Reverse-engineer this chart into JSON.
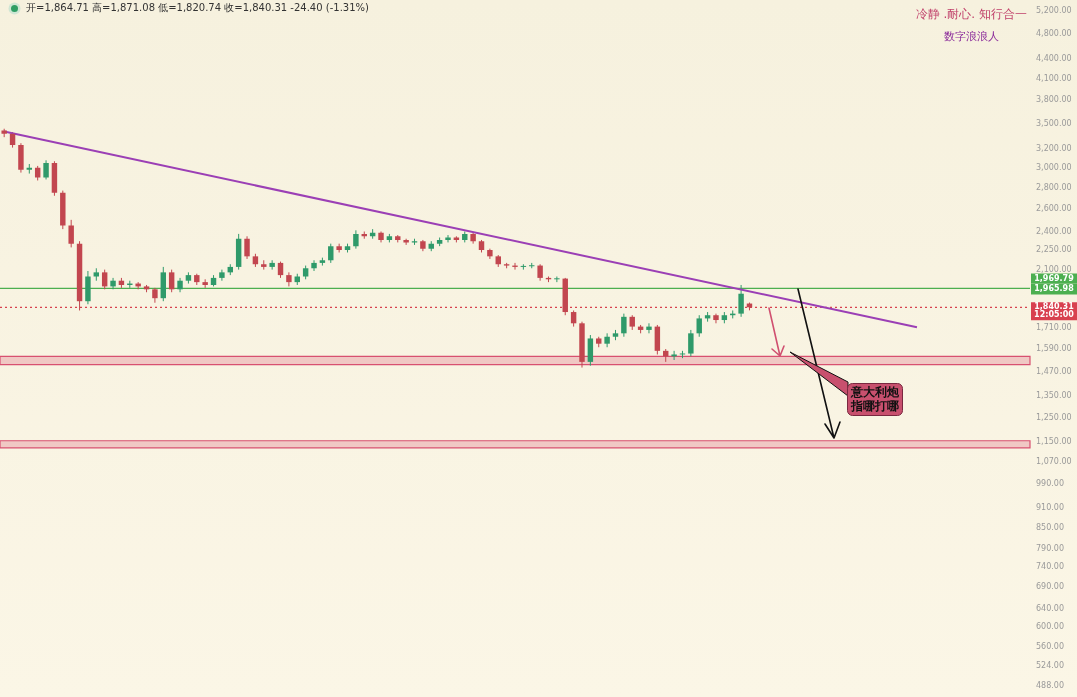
{
  "chart_data": {
    "type": "candlestick",
    "title": "冷静 .耐心. 知行合一",
    "subtitle": "数字浪浪人",
    "categories": [
      null,
      null,
      null,
      null,
      null,
      null,
      null,
      null,
      null,
      null,
      null,
      null,
      null,
      null,
      null,
      null,
      null,
      null,
      null,
      null,
      null,
      null,
      null,
      null,
      null,
      null,
      null,
      null,
      null,
      null,
      null,
      null,
      null,
      null,
      null,
      null,
      null,
      null,
      null,
      null,
      null,
      null,
      null,
      null,
      null,
      null,
      null,
      null,
      null,
      null,
      null,
      null,
      null,
      null,
      null,
      null,
      null,
      null,
      null,
      null,
      null,
      null,
      null,
      null,
      null,
      null,
      null,
      null,
      null,
      null,
      null,
      null,
      null,
      null,
      null,
      null,
      null,
      null,
      null,
      null,
      null,
      null,
      null,
      null,
      null,
      null,
      null,
      null,
      null,
      null,
      null,
      null,
      null,
      null,
      null,
      null,
      null,
      null,
      null,
      null,
      null,
      null,
      null,
      null,
      null,
      null,
      null,
      null,
      null,
      null,
      null,
      null,
      null,
      null,
      null,
      null,
      null,
      null,
      null,
      null,
      null,
      null,
      null
    ],
    "ohlc": [
      [
        3420,
        3440,
        3340,
        3380
      ],
      [
        3380,
        3400,
        3220,
        3250
      ],
      [
        3250,
        3270,
        2950,
        2980
      ],
      [
        2980,
        3040,
        2940,
        3000
      ],
      [
        3000,
        3020,
        2870,
        2900
      ],
      [
        2900,
        3080,
        2880,
        3050
      ],
      [
        3050,
        3070,
        2720,
        2750
      ],
      [
        2750,
        2770,
        2420,
        2450
      ],
      [
        2450,
        2500,
        2270,
        2300
      ],
      [
        2300,
        2320,
        1820,
        1880
      ],
      [
        1880,
        2090,
        1860,
        2050
      ],
      [
        2050,
        2110,
        2020,
        2080
      ],
      [
        2080,
        2100,
        1960,
        1980
      ],
      [
        1980,
        2040,
        1960,
        2020
      ],
      [
        2020,
        2040,
        1970,
        1990
      ],
      [
        1990,
        2020,
        1970,
        2000
      ],
      [
        2000,
        2010,
        1960,
        1980
      ],
      [
        1980,
        1990,
        1940,
        1960
      ],
      [
        1960,
        1970,
        1870,
        1900
      ],
      [
        1900,
        2120,
        1880,
        2080
      ],
      [
        2080,
        2100,
        1940,
        1960
      ],
      [
        1960,
        2040,
        1940,
        2020
      ],
      [
        2020,
        2080,
        2000,
        2060
      ],
      [
        2060,
        2070,
        1990,
        2010
      ],
      [
        2010,
        2030,
        1970,
        1990
      ],
      [
        1990,
        2060,
        1980,
        2040
      ],
      [
        2040,
        2100,
        2020,
        2080
      ],
      [
        2080,
        2140,
        2060,
        2120
      ],
      [
        2120,
        2380,
        2100,
        2340
      ],
      [
        2340,
        2360,
        2180,
        2200
      ],
      [
        2200,
        2220,
        2120,
        2140
      ],
      [
        2140,
        2170,
        2100,
        2120
      ],
      [
        2120,
        2170,
        2100,
        2150
      ],
      [
        2150,
        2160,
        2040,
        2060
      ],
      [
        2060,
        2080,
        1980,
        2010
      ],
      [
        2010,
        2070,
        1990,
        2050
      ],
      [
        2050,
        2130,
        2030,
        2110
      ],
      [
        2110,
        2170,
        2090,
        2150
      ],
      [
        2150,
        2190,
        2130,
        2170
      ],
      [
        2170,
        2300,
        2150,
        2280
      ],
      [
        2280,
        2300,
        2230,
        2250
      ],
      [
        2250,
        2300,
        2230,
        2280
      ],
      [
        2280,
        2410,
        2260,
        2380
      ],
      [
        2380,
        2400,
        2340,
        2360
      ],
      [
        2360,
        2420,
        2340,
        2390
      ],
      [
        2390,
        2400,
        2310,
        2330
      ],
      [
        2330,
        2380,
        2310,
        2360
      ],
      [
        2360,
        2370,
        2310,
        2330
      ],
      [
        2330,
        2340,
        2290,
        2310
      ],
      [
        2310,
        2340,
        2290,
        2320
      ],
      [
        2320,
        2330,
        2240,
        2260
      ],
      [
        2260,
        2320,
        2240,
        2300
      ],
      [
        2300,
        2350,
        2280,
        2330
      ],
      [
        2330,
        2370,
        2310,
        2350
      ],
      [
        2350,
        2360,
        2310,
        2330
      ],
      [
        2330,
        2400,
        2310,
        2380
      ],
      [
        2380,
        2390,
        2300,
        2320
      ],
      [
        2320,
        2330,
        2230,
        2250
      ],
      [
        2250,
        2260,
        2180,
        2200
      ],
      [
        2200,
        2210,
        2120,
        2140
      ],
      [
        2140,
        2150,
        2110,
        2130
      ],
      [
        2130,
        2150,
        2100,
        2120
      ],
      [
        2120,
        2140,
        2100,
        2125
      ],
      [
        2125,
        2150,
        2110,
        2130
      ],
      [
        2130,
        2140,
        2020,
        2040
      ],
      [
        2040,
        2050,
        2010,
        2030
      ],
      [
        2030,
        2050,
        2010,
        2035
      ],
      [
        2035,
        2040,
        1790,
        1810
      ],
      [
        1810,
        1820,
        1720,
        1740
      ],
      [
        1740,
        1750,
        1490,
        1520
      ],
      [
        1520,
        1670,
        1500,
        1650
      ],
      [
        1650,
        1660,
        1600,
        1620
      ],
      [
        1620,
        1680,
        1600,
        1660
      ],
      [
        1660,
        1700,
        1640,
        1680
      ],
      [
        1680,
        1800,
        1660,
        1780
      ],
      [
        1780,
        1790,
        1700,
        1720
      ],
      [
        1720,
        1730,
        1680,
        1700
      ],
      [
        1700,
        1740,
        1680,
        1720
      ],
      [
        1720,
        1730,
        1560,
        1580
      ],
      [
        1580,
        1590,
        1520,
        1550
      ],
      [
        1550,
        1580,
        1530,
        1560
      ],
      [
        1560,
        1580,
        1540,
        1565
      ],
      [
        1565,
        1700,
        1550,
        1680
      ],
      [
        1680,
        1790,
        1660,
        1770
      ],
      [
        1770,
        1810,
        1750,
        1790
      ],
      [
        1790,
        1800,
        1740,
        1760
      ],
      [
        1760,
        1810,
        1740,
        1790
      ],
      [
        1790,
        1820,
        1770,
        1800
      ],
      [
        1800,
        1990,
        1780,
        1930
      ],
      [
        1864.71,
        1871.08,
        1820.74,
        1840.31
      ],
      null,
      null,
      null,
      null,
      null,
      null,
      null,
      null,
      null,
      null,
      null,
      null,
      null,
      null,
      null,
      null,
      null,
      null,
      null,
      null,
      null,
      null,
      null,
      null,
      null,
      null,
      null,
      null,
      null,
      null,
      null,
      null,
      null
    ],
    "series": [
      {
        "type": "line",
        "color": "#9b3fb5",
        "values": [
          3406,
          null,
          null,
          null,
          null,
          null,
          null,
          null,
          null,
          null,
          null,
          null,
          null,
          null,
          null,
          null,
          null,
          null,
          null,
          null,
          null,
          null,
          null,
          null,
          null,
          null,
          null,
          null,
          null,
          null,
          null,
          null,
          null,
          null,
          null,
          null,
          null,
          null,
          null,
          null,
          null,
          null,
          null,
          null,
          null,
          null,
          null,
          null,
          null,
          null,
          null,
          null,
          null,
          null,
          null,
          null,
          null,
          null,
          null,
          null,
          null,
          null,
          null,
          null,
          null,
          null,
          null,
          null,
          null,
          null,
          null,
          null,
          null,
          null,
          null,
          null,
          null,
          null,
          null,
          null,
          null,
          null,
          null,
          null,
          null,
          null,
          null,
          null,
          null,
          null,
          null,
          null,
          null,
          null,
          null,
          null,
          null,
          null,
          null,
          null,
          null,
          null,
          null,
          null,
          null,
          null,
          null,
          null,
          null,
          1716,
          null,
          null,
          null,
          null,
          null,
          null,
          null,
          null,
          null,
          null,
          null,
          null,
          null
        ]
      }
    ],
    "log": true,
    "ylim": [
      488,
      5200
    ],
    "yticks": [
      {
        "value": 5200,
        "label": "5,200.00"
      },
      {
        "value": 4800,
        "label": "4,800.00"
      },
      {
        "value": 4400,
        "label": "4,400.00"
      },
      {
        "value": 4100,
        "label": "4,100.00"
      },
      {
        "value": 3800,
        "label": "3,800.00"
      },
      {
        "value": 3500,
        "label": "3,500.00"
      },
      {
        "value": 3200,
        "label": "3,200.00"
      },
      {
        "value": 3000,
        "label": "3,000.00"
      },
      {
        "value": 2800,
        "label": "2,800.00"
      },
      {
        "value": 2600,
        "label": "2,600.00"
      },
      {
        "value": 2400,
        "label": "2,400.00"
      },
      {
        "value": 2250,
        "label": "2,250.00"
      },
      {
        "value": 2100,
        "label": "2,100.00"
      },
      {
        "value": 1710,
        "label": "1,710.00"
      },
      {
        "value": 1590,
        "label": "1,590.00"
      },
      {
        "value": 1470,
        "label": "1,470.00"
      },
      {
        "value": 1350,
        "label": "1,350.00"
      },
      {
        "value": 1250,
        "label": "1,250.00"
      },
      {
        "value": 1150,
        "label": "1,150.00"
      },
      {
        "value": 1070,
        "label": "1,070.00"
      },
      {
        "value": 990,
        "label": "990.00"
      },
      {
        "value": 910,
        "label": "910.00"
      },
      {
        "value": 850,
        "label": "850.00"
      },
      {
        "value": 790,
        "label": "790.00"
      },
      {
        "value": 740,
        "label": "740.00"
      },
      {
        "value": 690,
        "label": "690.00"
      },
      {
        "value": 640,
        "label": "640.00"
      },
      {
        "value": 600,
        "label": "600.00"
      },
      {
        "value": 560,
        "label": "560.00"
      },
      {
        "value": 524,
        "label": "524.00"
      },
      {
        "value": 488,
        "label": "488.00"
      }
    ],
    "tick_labels": "y",
    "ref_lines": [
      {
        "axis": "y",
        "value": 1965.98,
        "label": "1,965.98",
        "color": "#4caf50",
        "line_style": "solid"
      },
      {
        "axis": "y",
        "value": 1840.31,
        "label": "1,840.31",
        "color": "#d8404f",
        "line_style": "dotted"
      }
    ],
    "bands": [
      {
        "axis": "y",
        "from": 1505,
        "to": 1550,
        "color": "#d85070"
      },
      {
        "axis": "y",
        "from": 1125,
        "to": 1153,
        "color": "#d85070"
      }
    ],
    "annotations": [
      "开=1,864.71 高=1,871.08 低=1,820.74 收=1,840.31 -24.40 (-1.31%)",
      "12:05:00",
      "意大利炮指哪打哪",
      "1,969.79"
    ]
  }
}
